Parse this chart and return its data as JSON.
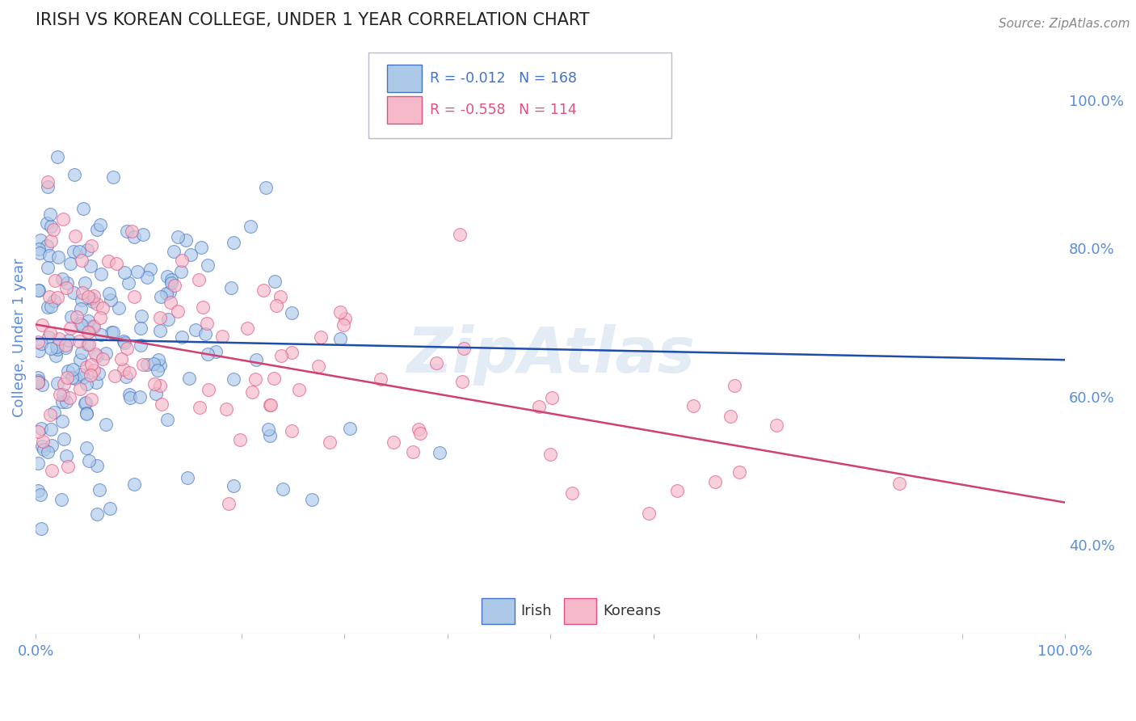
{
  "title": "IRISH VS KOREAN COLLEGE, UNDER 1 YEAR CORRELATION CHART",
  "source_text": "Source: ZipAtlas.com",
  "ylabel": "College, Under 1 year",
  "xlim": [
    0.0,
    1.0
  ],
  "ylim": [
    0.28,
    1.08
  ],
  "right_yticks": [
    0.4,
    0.6,
    0.8,
    1.0
  ],
  "right_yticklabels": [
    "40.0%",
    "60.0%",
    "80.0%",
    "100.0%"
  ],
  "xticks": [
    0.0,
    0.1,
    0.2,
    0.3,
    0.4,
    0.5,
    0.6,
    0.7,
    0.8,
    0.9,
    1.0
  ],
  "irish_color": "#adc9e8",
  "korean_color": "#f5b8c8",
  "irish_edge_color": "#4472c4",
  "korean_edge_color": "#e05080",
  "irish_line_color": "#1f4daa",
  "korean_line_color": "#d04070",
  "irish_R": -0.012,
  "irish_N": 168,
  "korean_R": -0.558,
  "korean_N": 114,
  "background_color": "#ffffff",
  "grid_color": "#c8c8c8",
  "axis_label_color": "#5b8dd9",
  "watermark": "ZipAtlas",
  "watermark_color": "#c8d8ec"
}
